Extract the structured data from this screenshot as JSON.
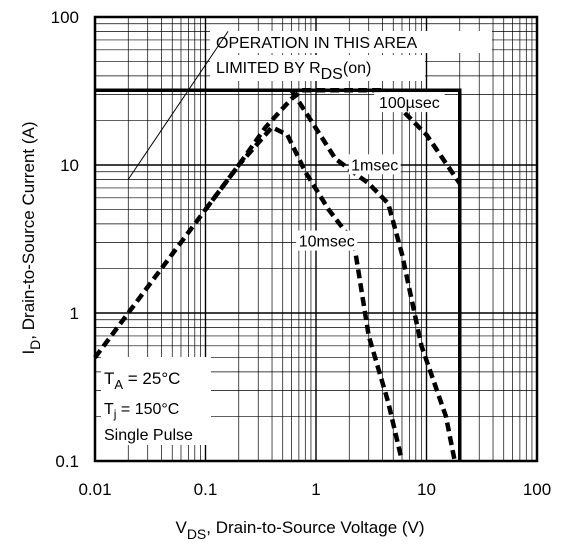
{
  "chart_data": {
    "type": "line",
    "xscale": "log",
    "yscale": "log",
    "xlim": [
      0.01,
      100
    ],
    "ylim": [
      0.1,
      100
    ],
    "grid": true,
    "x_ticks": [
      {
        "value": 0.01,
        "label": "0.01"
      },
      {
        "value": 0.1,
        "label": "0.1"
      },
      {
        "value": 1,
        "label": "1"
      },
      {
        "value": 10,
        "label": "10"
      },
      {
        "value": 100,
        "label": "100"
      }
    ],
    "y_ticks": [
      {
        "value": 0.1,
        "label": "0.1"
      },
      {
        "value": 1,
        "label": "1"
      },
      {
        "value": 10,
        "label": "10"
      },
      {
        "value": 100,
        "label": "100"
      }
    ],
    "xlabel": {
      "main": "V",
      "sub": "DS",
      "rest": ", Drain-to-Source Voltage (V)"
    },
    "ylabel": {
      "main": "I",
      "sub": "D",
      "rest": ",  Drain-to-Source Current (A)"
    },
    "soa_boundary": {
      "points": [
        [
          0.01,
          32
        ],
        [
          20,
          32
        ],
        [
          20,
          0.1
        ]
      ],
      "color": "#000000"
    },
    "series": [
      {
        "name": "100µsec",
        "style": "dashed",
        "points": [
          [
            0.75,
            32
          ],
          [
            4,
            32
          ],
          [
            10,
            16
          ],
          [
            20,
            7.5
          ]
        ]
      },
      {
        "name": "1msec",
        "style": "dashed",
        "points": [
          [
            0.6,
            32
          ],
          [
            0.9,
            20
          ],
          [
            1.5,
            11
          ],
          [
            3,
            7.5
          ],
          [
            4.5,
            5.5
          ],
          [
            6,
            2.5
          ],
          [
            9,
            0.6
          ],
          [
            15,
            0.2
          ],
          [
            18,
            0.1
          ]
        ]
      },
      {
        "name": "10msec",
        "style": "dashed",
        "points": [
          [
            0.01,
            0.5
          ],
          [
            0.02,
            1
          ],
          [
            0.05,
            2.5
          ],
          [
            0.1,
            5
          ],
          [
            0.2,
            10
          ],
          [
            0.4,
            18
          ],
          [
            0.55,
            16
          ],
          [
            0.8,
            9
          ],
          [
            1.3,
            5
          ],
          [
            2.2,
            3
          ],
          [
            3,
            0.7
          ],
          [
            4.5,
            0.25
          ],
          [
            6,
            0.1
          ]
        ]
      },
      {
        "name": "",
        "style": "dashed",
        "points": [
          [
            0.1,
            5
          ],
          [
            0.2,
            10
          ],
          [
            0.35,
            18
          ],
          [
            0.6,
            28
          ],
          [
            0.75,
            32
          ]
        ]
      }
    ],
    "series_labels": [
      {
        "series": "100µsec",
        "text": "100µsec",
        "at": [
          7,
          25
        ]
      },
      {
        "series": "1msec",
        "text": "1msec",
        "at": [
          3.4,
          9.5
        ]
      },
      {
        "series": "10msec",
        "text": "10msec",
        "at": [
          1.25,
          2.9
        ]
      }
    ],
    "annotations": {
      "operation_line1": "OPERATION IN THIS AREA",
      "operation_line2_prefix": "LIMITED BY R",
      "operation_line2_sub": "DS",
      "operation_line2_suffix": "(on)",
      "pointer_start": [
        0.16,
        80
      ],
      "pointer_end": [
        0.02,
        8
      ],
      "conditions": {
        "ta_main": "T",
        "ta_sub": "A",
        "ta_rest": " = 25°C",
        "tj_main": "T",
        "tj_sub": "j",
        "tj_rest": " = 150°C",
        "pulse": "Single Pulse"
      }
    }
  }
}
